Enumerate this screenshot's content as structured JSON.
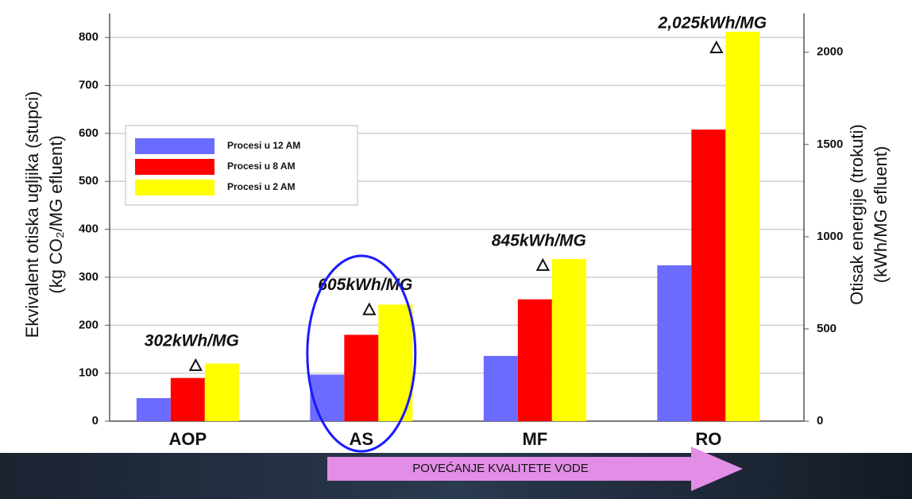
{
  "chart_data": {
    "type": "bar",
    "categories": [
      "AOP",
      "AS",
      "MF",
      "RO"
    ],
    "series": [
      {
        "name": "Procesi u 12 AM",
        "color": "#6b6bff",
        "values": [
          48,
          97,
          136,
          325
        ]
      },
      {
        "name": "Procesi u 8 AM",
        "color": "#ff0000",
        "values": [
          90,
          180,
          254,
          608
        ]
      },
      {
        "name": "Procesi u 2 AM",
        "color": "#ffff00",
        "values": [
          120,
          243,
          338,
          812
        ]
      },
      {
        "name": "Otisak energije",
        "axis": "y2",
        "marker": "triangle",
        "values": [
          302,
          605,
          845,
          2025
        ],
        "value_labels": [
          "302kWh/MG",
          "605kWh/MG",
          "845kWh/MG",
          "2,025kWh/MG"
        ]
      }
    ],
    "ylabel": [
      "Ekvivalent otiska ugljika (stupci)",
      "(kg CO₂/MG efluent)"
    ],
    "y2label": [
      "Otisak energije (trokuti)",
      "(kWh/MG efluent)"
    ],
    "ylim": [
      0,
      850
    ],
    "yticks": [
      0,
      100,
      200,
      300,
      400,
      500,
      600,
      700,
      800
    ],
    "y2lim": [
      0,
      2210
    ],
    "y2ticks": [
      0,
      500,
      1000,
      1500,
      2000
    ],
    "grid": true,
    "legend": "upper left",
    "annotation": "POVEĆANJE KVALITETE VODE"
  }
}
